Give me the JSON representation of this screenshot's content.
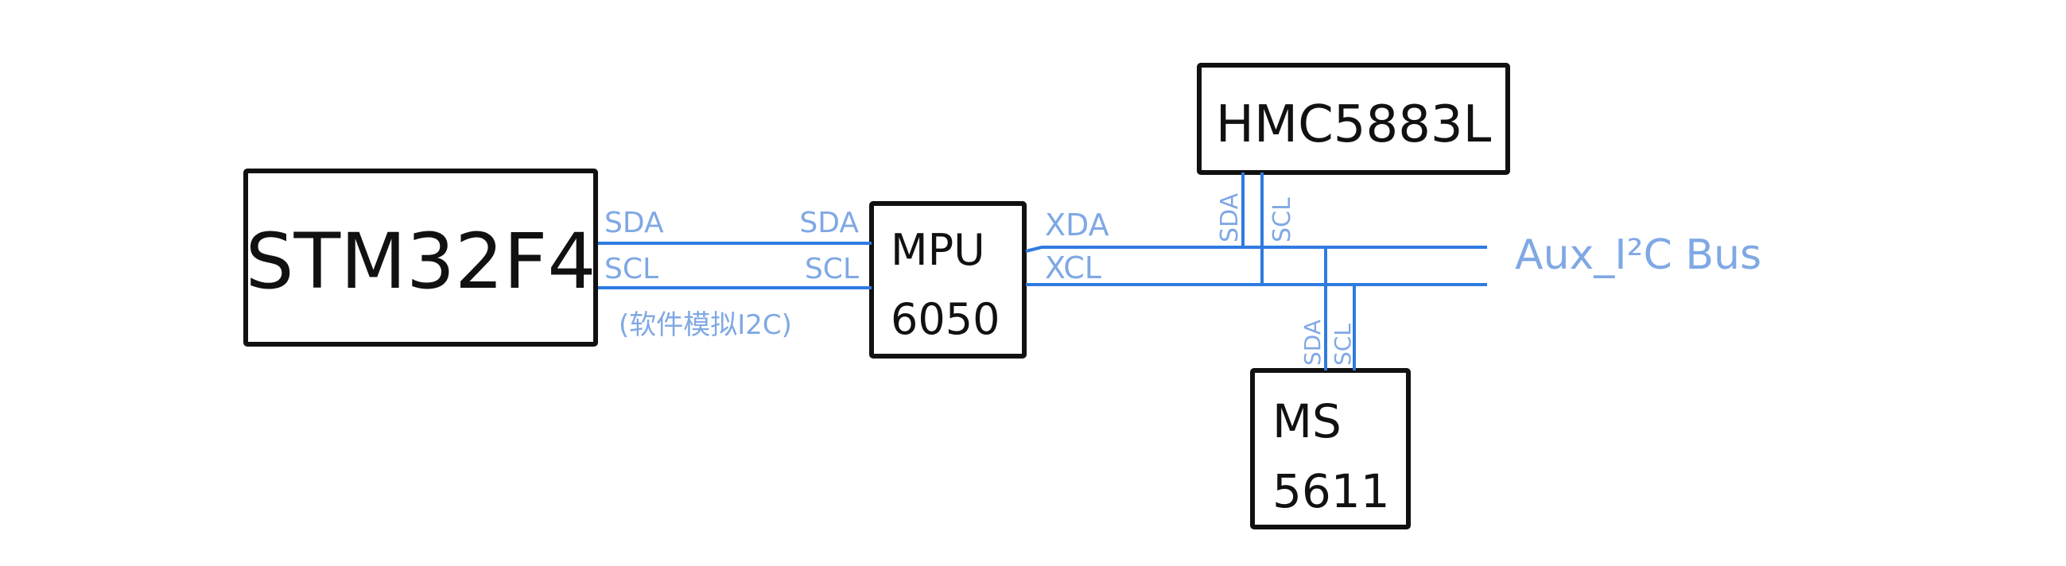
{
  "diagram": {
    "title": "",
    "blocks": {
      "stm32": {
        "label": "STM32F4"
      },
      "mpu": {
        "line1": "MPU",
        "line2": "6050"
      },
      "hmc": {
        "label": "HMC5883L"
      },
      "ms": {
        "line1": "MS",
        "line2": "5611"
      }
    },
    "bus_labels": {
      "stm_sda": "SDA",
      "stm_scl": "SCL",
      "mpu_sda": "SDA",
      "mpu_scl": "SCL",
      "xda": "XDA",
      "xcl": "XCL",
      "hmc_sda": "SDA",
      "hmc_scl": "SCL",
      "ms_sda": "SDA",
      "ms_scl": "SCL",
      "aux_bus": "Aux_I²C Bus",
      "sw_i2c_note": "(软件模拟I2C)"
    },
    "colors": {
      "wire": "#2f7be0",
      "wire_label": "#7fa8e4",
      "block_border": "#111111",
      "background": "#ffffff"
    }
  }
}
